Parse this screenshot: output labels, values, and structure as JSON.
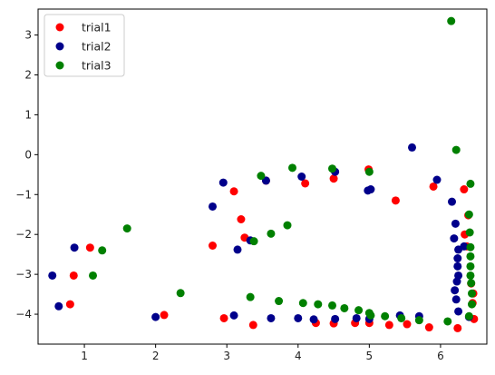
{
  "chart_data": {
    "type": "scatter",
    "title": "",
    "xlabel": "",
    "ylabel": "",
    "xlim": [
      0.35,
      6.65
    ],
    "ylim": [
      -4.75,
      3.65
    ],
    "xticks": [
      1,
      2,
      3,
      4,
      5,
      6
    ],
    "yticks": [
      3,
      2,
      1,
      0,
      -1,
      -2,
      -3,
      -4
    ],
    "xtick_labels": [
      "1",
      "2",
      "3",
      "4",
      "5",
      "6"
    ],
    "ytick_labels": [
      "3",
      "2",
      "1",
      "0",
      "−1",
      "−2",
      "−3",
      "−4"
    ],
    "grid": false,
    "legend_position": "top-left",
    "series": [
      {
        "name": "trial1",
        "color": "#ff0000",
        "points": [
          [
            0.8,
            -3.75
          ],
          [
            0.85,
            -3.03
          ],
          [
            1.08,
            -2.33
          ],
          [
            2.12,
            -4.02
          ],
          [
            2.8,
            -2.28
          ],
          [
            2.96,
            -4.1
          ],
          [
            3.1,
            -0.92
          ],
          [
            3.2,
            -1.62
          ],
          [
            3.25,
            -2.08
          ],
          [
            3.37,
            -4.27
          ],
          [
            3.55,
            -0.65
          ],
          [
            4.1,
            -0.72
          ],
          [
            4.25,
            -4.22
          ],
          [
            4.5,
            -0.6
          ],
          [
            4.5,
            -4.23
          ],
          [
            4.8,
            -4.22
          ],
          [
            4.99,
            -0.37
          ],
          [
            5.0,
            -4.22
          ],
          [
            5.28,
            -4.27
          ],
          [
            5.37,
            -1.15
          ],
          [
            5.53,
            -4.25
          ],
          [
            5.84,
            -4.33
          ],
          [
            5.9,
            -0.8
          ],
          [
            6.24,
            -4.35
          ],
          [
            6.33,
            -0.87
          ],
          [
            6.34,
            -2.0
          ],
          [
            6.37,
            -2.3
          ],
          [
            6.39,
            -1.52
          ],
          [
            6.43,
            -3.23
          ],
          [
            6.45,
            -3.72
          ],
          [
            6.46,
            -3.48
          ],
          [
            6.47,
            -4.12
          ]
        ]
      },
      {
        "name": "trial2",
        "color": "#00008b",
        "points": [
          [
            0.55,
            -3.03
          ],
          [
            0.64,
            -3.8
          ],
          [
            0.86,
            -2.33
          ],
          [
            2.0,
            -4.07
          ],
          [
            2.8,
            -1.3
          ],
          [
            2.95,
            -0.7
          ],
          [
            3.1,
            -4.03
          ],
          [
            3.15,
            -2.38
          ],
          [
            3.33,
            -2.15
          ],
          [
            3.55,
            -0.65
          ],
          [
            3.62,
            -4.1
          ],
          [
            4.0,
            -4.1
          ],
          [
            4.05,
            -0.55
          ],
          [
            4.22,
            -4.13
          ],
          [
            4.52,
            -4.12
          ],
          [
            4.52,
            -0.43
          ],
          [
            4.82,
            -4.1
          ],
          [
            4.98,
            -0.9
          ],
          [
            5.0,
            -4.12
          ],
          [
            5.02,
            -0.87
          ],
          [
            5.43,
            -4.03
          ],
          [
            5.6,
            0.18
          ],
          [
            5.7,
            -4.05
          ],
          [
            5.95,
            -0.63
          ],
          [
            6.16,
            -1.18
          ],
          [
            6.19,
            -2.1
          ],
          [
            6.2,
            -3.4
          ],
          [
            6.21,
            -1.73
          ],
          [
            6.22,
            -3.63
          ],
          [
            6.23,
            -3.18
          ],
          [
            6.24,
            -2.8
          ],
          [
            6.24,
            -2.6
          ],
          [
            6.25,
            -3.03
          ],
          [
            6.25,
            -3.93
          ],
          [
            6.25,
            -2.38
          ],
          [
            6.33,
            -2.3
          ],
          [
            6.4,
            -4.07
          ]
        ]
      },
      {
        "name": "trial3",
        "color": "#008000",
        "points": [
          [
            1.12,
            -3.03
          ],
          [
            1.25,
            -2.4
          ],
          [
            1.6,
            -1.85
          ],
          [
            2.35,
            -3.47
          ],
          [
            3.33,
            -3.57
          ],
          [
            3.38,
            -2.17
          ],
          [
            3.48,
            -0.53
          ],
          [
            3.62,
            -1.98
          ],
          [
            3.73,
            -3.67
          ],
          [
            3.85,
            -1.77
          ],
          [
            3.92,
            -0.33
          ],
          [
            4.07,
            -3.72
          ],
          [
            4.28,
            -3.75
          ],
          [
            4.48,
            -0.35
          ],
          [
            4.48,
            -3.78
          ],
          [
            4.65,
            -3.85
          ],
          [
            4.85,
            -3.9
          ],
          [
            5.0,
            -3.97
          ],
          [
            5.0,
            -0.43
          ],
          [
            5.02,
            -4.03
          ],
          [
            5.22,
            -4.05
          ],
          [
            5.45,
            -4.1
          ],
          [
            5.7,
            -4.15
          ],
          [
            6.1,
            -4.18
          ],
          [
            6.15,
            3.35
          ],
          [
            6.22,
            0.12
          ],
          [
            6.4,
            -4.05
          ],
          [
            6.4,
            -1.5
          ],
          [
            6.41,
            -1.95
          ],
          [
            6.42,
            -2.32
          ],
          [
            6.42,
            -2.55
          ],
          [
            6.42,
            -2.8
          ],
          [
            6.42,
            -3.03
          ],
          [
            6.42,
            -0.73
          ],
          [
            6.43,
            -3.22
          ],
          [
            6.44,
            -3.48
          ],
          [
            6.44,
            -3.75
          ]
        ]
      }
    ]
  }
}
